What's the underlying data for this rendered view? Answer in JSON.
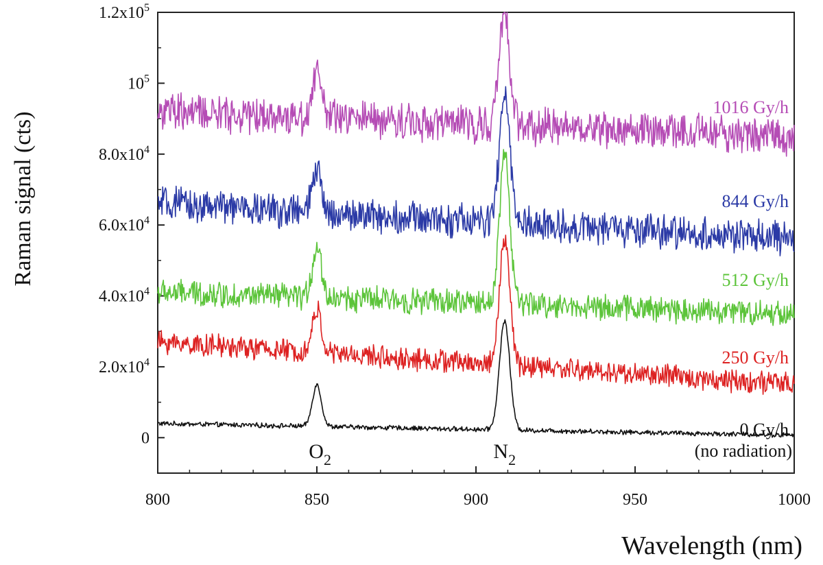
{
  "chart_data": {
    "type": "line",
    "title": "",
    "xlabel": "Wavelength (nm)",
    "ylabel": "Raman signal (cts)",
    "xlim": [
      800,
      1000
    ],
    "ylim": [
      -10000,
      120000
    ],
    "grid": false,
    "x_ticks": [
      {
        "value": 800,
        "label": "800"
      },
      {
        "value": 850,
        "label": "850"
      },
      {
        "value": 900,
        "label": "900"
      },
      {
        "value": 950,
        "label": "950"
      },
      {
        "value": 1000,
        "label": "1000"
      }
    ],
    "y_ticks": [
      {
        "value": 0,
        "label": "0",
        "sup": ""
      },
      {
        "value": 20000,
        "label": "2.0x10",
        "sup": "4"
      },
      {
        "value": 40000,
        "label": "4.0x10",
        "sup": "4"
      },
      {
        "value": 60000,
        "label": "6.0x10",
        "sup": "4"
      },
      {
        "value": 80000,
        "label": "8.0x10",
        "sup": "4"
      },
      {
        "value": 100000,
        "label": "10",
        "sup": "5"
      },
      {
        "value": 120000,
        "label": "1.2x10",
        "sup": "5"
      }
    ],
    "peaks_nm": [
      850,
      909
    ],
    "series": [
      {
        "name": "0 Gy/h",
        "color": "#111111",
        "baseline_start": 4000,
        "baseline_end": 700,
        "o2_peak": 15000,
        "n2_peak": 33000,
        "noise": 600
      },
      {
        "name": "250 Gy/h",
        "color": "#dd2222",
        "baseline_start": 27000,
        "baseline_end": 15000,
        "o2_peak": 36000,
        "n2_peak": 56000,
        "noise": 2800
      },
      {
        "name": "512 Gy/h",
        "color": "#5cc43a",
        "baseline_start": 41000,
        "baseline_end": 35000,
        "o2_peak": 54000,
        "n2_peak": 80000,
        "noise": 3200
      },
      {
        "name": "844 Gy/h",
        "color": "#2b3aa6",
        "baseline_start": 66000,
        "baseline_end": 56000,
        "o2_peak": 75000,
        "n2_peak": 97000,
        "noise": 4200
      },
      {
        "name": "1016 Gy/h",
        "color": "#b54cb5",
        "baseline_start": 92000,
        "baseline_end": 85000,
        "o2_peak": 104000,
        "n2_peak": 120000,
        "noise": 4600
      }
    ],
    "annotations": [
      {
        "text": "O",
        "sub": "2",
        "x": 851
      },
      {
        "text": "N",
        "sub": "2",
        "x": 909
      }
    ],
    "note": "(no radiation)"
  }
}
